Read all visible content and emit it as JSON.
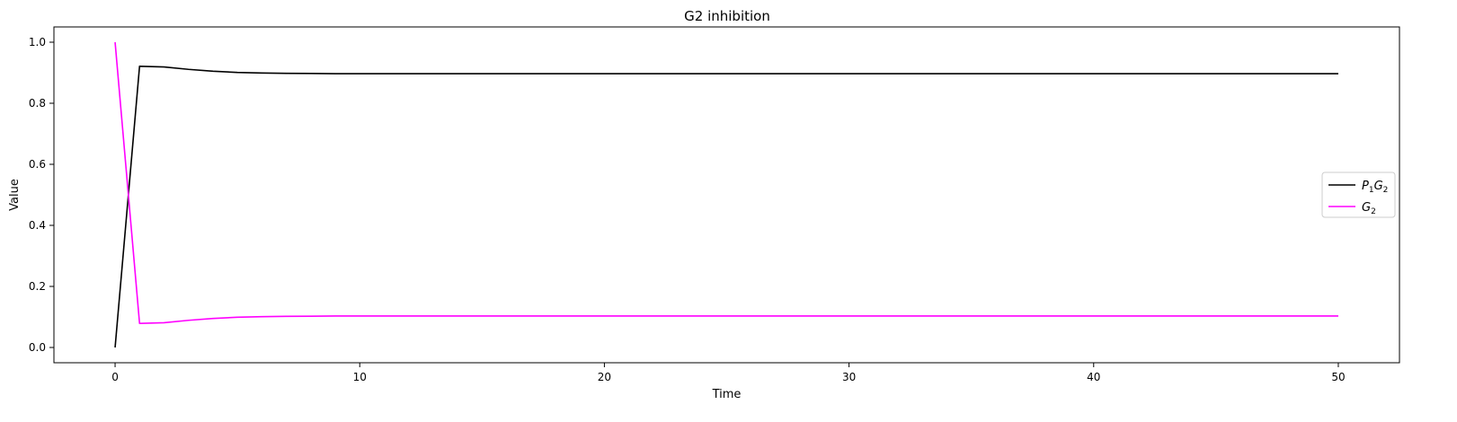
{
  "chart_data": {
    "type": "line",
    "title": "G2 inhibition",
    "xlabel": "Time",
    "ylabel": "Value",
    "xlim": [
      -2.5,
      52.5
    ],
    "ylim": [
      -0.05,
      1.05
    ],
    "x_ticks": [
      0,
      10,
      20,
      30,
      40,
      50
    ],
    "y_ticks": [
      0.0,
      0.2,
      0.4,
      0.6,
      0.8,
      1.0
    ],
    "x_tick_labels": [
      "0",
      "10",
      "20",
      "30",
      "40",
      "50"
    ],
    "y_tick_labels": [
      "0.0",
      "0.2",
      "0.4",
      "0.6",
      "0.8",
      "1.0"
    ],
    "grid": false,
    "legend_position": "center-right",
    "x": [
      0,
      1,
      2,
      3,
      4,
      5,
      6,
      7,
      8,
      9,
      10,
      11,
      12,
      13,
      14,
      15,
      16,
      17,
      18,
      19,
      20,
      21,
      22,
      23,
      24,
      25,
      26,
      27,
      28,
      29,
      30,
      31,
      32,
      33,
      34,
      35,
      36,
      37,
      38,
      39,
      40,
      41,
      42,
      43,
      44,
      45,
      46,
      47,
      48,
      49,
      50
    ],
    "series": [
      {
        "name": "P1G2",
        "legend_main": [
          "P",
          "G"
        ],
        "legend_sub": [
          "1",
          "2"
        ],
        "color": "#000000",
        "values": [
          0.0,
          0.921,
          0.919,
          0.911,
          0.905,
          0.901,
          0.899,
          0.898,
          0.8975,
          0.897,
          0.897,
          0.897,
          0.897,
          0.897,
          0.897,
          0.897,
          0.897,
          0.897,
          0.897,
          0.897,
          0.897,
          0.897,
          0.897,
          0.897,
          0.897,
          0.897,
          0.897,
          0.897,
          0.897,
          0.897,
          0.897,
          0.897,
          0.897,
          0.897,
          0.897,
          0.897,
          0.897,
          0.897,
          0.897,
          0.897,
          0.897,
          0.897,
          0.897,
          0.897,
          0.897,
          0.897,
          0.897,
          0.897,
          0.897,
          0.897,
          0.897
        ]
      },
      {
        "name": "G2",
        "legend_main": [
          "G"
        ],
        "legend_sub": [
          "2"
        ],
        "color": "#ff00ff",
        "values": [
          1.0,
          0.079,
          0.081,
          0.089,
          0.095,
          0.099,
          0.101,
          0.102,
          0.1025,
          0.103,
          0.103,
          0.103,
          0.103,
          0.103,
          0.103,
          0.103,
          0.103,
          0.103,
          0.103,
          0.103,
          0.103,
          0.103,
          0.103,
          0.103,
          0.103,
          0.103,
          0.103,
          0.103,
          0.103,
          0.103,
          0.103,
          0.103,
          0.103,
          0.103,
          0.103,
          0.103,
          0.103,
          0.103,
          0.103,
          0.103,
          0.103,
          0.103,
          0.103,
          0.103,
          0.103,
          0.103,
          0.103,
          0.103,
          0.103,
          0.103,
          0.103
        ]
      }
    ]
  }
}
